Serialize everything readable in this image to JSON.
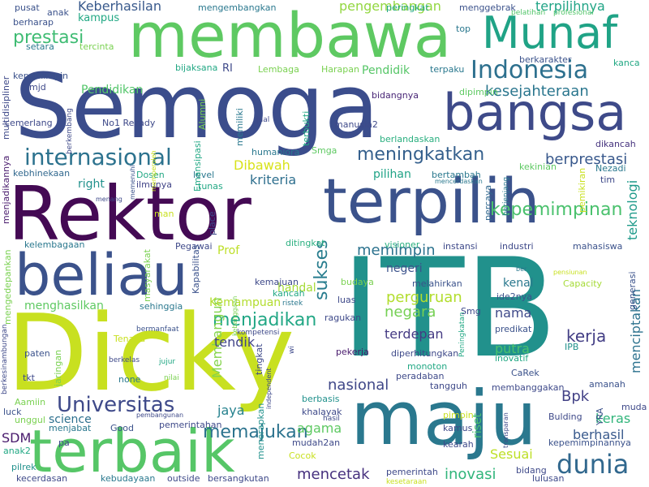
{
  "words": [
    {
      "t": "Semoga",
      "c": "#3b4d8c"
    },
    {
      "t": "ITB",
      "c": "#21918c"
    },
    {
      "t": "Dicky",
      "c": "#c8e020"
    },
    {
      "t": "Rektor",
      "c": "#440a54"
    },
    {
      "t": "membawa",
      "c": "#5ec962"
    },
    {
      "t": "terpilih",
      "c": "#3b528b"
    },
    {
      "t": "maju",
      "c": "#2a788e"
    },
    {
      "t": "terbaik",
      "c": "#56c667"
    },
    {
      "t": "beliau",
      "c": "#3b528b"
    },
    {
      "t": "bangsa",
      "c": "#3e4a89"
    },
    {
      "t": "Munaf",
      "c": "#20a386"
    },
    {
      "t": "Indonesia",
      "c": "#2d708e"
    },
    {
      "t": "internasional",
      "c": "#2c728e"
    },
    {
      "t": "dunia",
      "c": "#31688e"
    },
    {
      "t": "Universitas",
      "c": "#3e4989"
    },
    {
      "t": "kepemimpinan",
      "c": "#4ac16d"
    },
    {
      "t": "meningkatkan",
      "c": "#35608d"
    },
    {
      "t": "menjadikan",
      "c": "#22a785"
    },
    {
      "t": "memajukan",
      "c": "#2c738e"
    },
    {
      "t": "prestasi",
      "c": "#3fbc73"
    },
    {
      "t": "sukses",
      "c": "#287d8e"
    },
    {
      "t": "kesejahteraan",
      "c": "#2a768e"
    },
    {
      "t": "Keberhasilan",
      "c": "#38598c"
    },
    {
      "t": "pengembangan",
      "c": "#93d741"
    },
    {
      "t": "terpilihnya",
      "c": "#20a486"
    },
    {
      "t": "berprestasi",
      "c": "#38588c"
    },
    {
      "t": "perguruan",
      "c": "#b2dd2d"
    },
    {
      "t": "inovasi",
      "c": "#31b57b"
    },
    {
      "t": "nasional",
      "c": "#3f4788"
    },
    {
      "t": "mencetak",
      "c": "#46307e"
    },
    {
      "t": "Dibawah",
      "c": "#d8e219"
    },
    {
      "t": "kriteria",
      "c": "#2e6f8e"
    },
    {
      "t": "memimpin",
      "c": "#2c728e"
    },
    {
      "t": "negara",
      "c": "#75d054"
    },
    {
      "t": "terdepan",
      "c": "#443a83"
    },
    {
      "t": "kerja",
      "c": "#433e85"
    },
    {
      "t": "keras",
      "c": "#31b57b"
    },
    {
      "t": "berhasil",
      "c": "#38598c"
    },
    {
      "t": "menciptakan",
      "c": "#2c728e"
    },
    {
      "t": "teknologi",
      "c": "#1f9a8a"
    },
    {
      "t": "Bpk",
      "c": "#424186"
    },
    {
      "t": "science",
      "c": "#2d708e"
    },
    {
      "t": "jaya",
      "c": "#26828e"
    },
    {
      "t": "agama",
      "c": "#5ec962"
    },
    {
      "t": "riset",
      "c": "#48c16e"
    },
    {
      "t": "Sesuai",
      "c": "#bddf26"
    },
    {
      "t": "SDM",
      "c": "#481a6c"
    },
    {
      "t": "Membangun",
      "c": "#84d44b"
    },
    {
      "t": "Kemampuan",
      "c": "#b2dd2d"
    },
    {
      "t": "menghasilkan",
      "c": "#5ec962"
    },
    {
      "t": "handal",
      "c": "#a5db36"
    },
    {
      "t": "tendik",
      "c": "#414487"
    },
    {
      "t": "nama",
      "c": "#3e4989"
    },
    {
      "t": "putra",
      "c": "#48c16e"
    },
    {
      "t": "kenal",
      "c": "#2a788e"
    },
    {
      "t": "negeri",
      "c": "#3b528b"
    },
    {
      "t": "pilihan",
      "c": "#20a386"
    },
    {
      "t": "right",
      "c": "#21918c"
    },
    {
      "t": "Prof",
      "c": "#bddf26"
    },
    {
      "t": "Pendidikan",
      "c": "#52c569"
    },
    {
      "t": "Pendidik",
      "c": "#56c667"
    },
    {
      "t": "kampus",
      "c": "#22a884"
    },
    {
      "t": "berharap",
      "c": "#3b528b"
    },
    {
      "t": "cemerlang",
      "c": "#3e4989"
    },
    {
      "t": "kepemimpin",
      "c": "#3b528b"
    },
    {
      "t": "bidangnya",
      "c": "#482576"
    },
    {
      "t": "berlandaskan",
      "c": "#29af7f"
    },
    {
      "t": "dikancah",
      "c": "#46337e"
    },
    {
      "t": "mahasiswa",
      "c": "#3b528b"
    },
    {
      "t": "industri",
      "c": "#3e4989"
    },
    {
      "t": "instansi",
      "c": "#3e4989"
    },
    {
      "t": "Pegawai",
      "c": "#3e4989"
    },
    {
      "t": "ditingkat",
      "c": "#29af7f"
    },
    {
      "t": "visioner",
      "c": "#29af7f"
    },
    {
      "t": "kelembagaan",
      "c": "#2a788e"
    },
    {
      "t": "menjadikannya",
      "c": "#481a6c"
    },
    {
      "t": "kebhinekaan",
      "c": "#31688e"
    },
    {
      "t": "ilmunya",
      "c": "#414487"
    },
    {
      "t": "Dosen",
      "c": "#22a884"
    },
    {
      "t": "level",
      "c": "#2a788e"
    },
    {
      "t": "tunas",
      "c": "#22a884"
    },
    {
      "t": "man",
      "c": "#c8e020"
    },
    {
      "t": "place",
      "c": "#3e4989"
    },
    {
      "t": "humaniora",
      "c": "#2a788e"
    },
    {
      "t": "Smga",
      "c": "#5ec962"
    },
    {
      "t": "manusia2",
      "c": "#3e4989"
    },
    {
      "t": "No1 Rezady",
      "c": "#3e4989"
    },
    {
      "t": "RI",
      "c": "#3e4989"
    },
    {
      "t": "bijaksana",
      "c": "#22a884"
    },
    {
      "t": "Lembaga",
      "c": "#7ad151"
    },
    {
      "t": "Harapan",
      "c": "#7ad151"
    },
    {
      "t": "terpaku",
      "c": "#2a788e"
    },
    {
      "t": "dipimpin",
      "c": "#5ec962"
    },
    {
      "t": "berkarakter",
      "c": "#3b528b"
    },
    {
      "t": "kanca",
      "c": "#22a884"
    },
    {
      "t": "top",
      "c": "#2a788e"
    },
    {
      "t": "peringkat",
      "c": "#22a884"
    },
    {
      "t": "menggebrak",
      "c": "#3b528b"
    },
    {
      "t": "mengembangkan",
      "c": "#2a788e"
    },
    {
      "t": "pusat",
      "c": "#3b528b"
    },
    {
      "t": "anak",
      "c": "#3b528b"
    },
    {
      "t": "setara",
      "c": "#2a788e"
    },
    {
      "t": "tercinta",
      "c": "#7ad151"
    },
    {
      "t": "mjd",
      "c": "#3e4989"
    },
    {
      "t": "pelatihan",
      "c": "#52c569"
    },
    {
      "t": "profesional",
      "c": "#52c569"
    },
    {
      "t": "jual",
      "c": "#3e4989"
    },
    {
      "t": "Alumni",
      "c": "#7ad151"
    },
    {
      "t": "Emansipasi",
      "c": "#22a884"
    },
    {
      "t": "memiliki",
      "c": "#2a788e"
    },
    {
      "t": "terbukti",
      "c": "#22a884"
    },
    {
      "t": "bertambah",
      "c": "#2a788e"
    },
    {
      "t": "kekinian",
      "c": "#5ec962"
    },
    {
      "t": "Nezadi",
      "c": "#2a788e"
    },
    {
      "t": "tim",
      "c": "#3e4989"
    },
    {
      "t": "mencerdaskan",
      "c": "#2a788e"
    },
    {
      "t": "percaya",
      "c": "#31688e"
    },
    {
      "t": "pemikiran",
      "c": "#c8e020"
    },
    {
      "t": "berjenjang",
      "c": "#2a788e"
    },
    {
      "t": "memperoleh",
      "c": "#c8e020"
    },
    {
      "t": "menang",
      "c": "#3e4989"
    },
    {
      "t": "memenuhi",
      "c": "#3b528b"
    },
    {
      "t": "mengedepankan",
      "c": "#7ad151"
    },
    {
      "t": "masyarakat",
      "c": "#7ad151"
    },
    {
      "t": "Kapabilitas",
      "c": "#3b528b"
    },
    {
      "t": "sehinggia",
      "c": "#2a788e"
    },
    {
      "t": "kemajuan",
      "c": "#3e4989"
    },
    {
      "t": "kancah",
      "c": "#22a884"
    },
    {
      "t": "ristek",
      "c": "#2a788e"
    },
    {
      "t": "budaya",
      "c": "#7ad151"
    },
    {
      "t": "melahirkan",
      "c": "#3b528b"
    },
    {
      "t": "luas",
      "c": "#3e4989"
    },
    {
      "t": "ide2nya",
      "c": "#3b528b"
    },
    {
      "t": "Smg",
      "c": "#3e4989"
    },
    {
      "t": "ber",
      "c": "#2a788e"
    },
    {
      "t": "pensiunan",
      "c": "#c8e020"
    },
    {
      "t": "Capacity",
      "c": "#a5db36"
    },
    {
      "t": "generasi",
      "c": "#3b528b"
    },
    {
      "t": "predikat",
      "c": "#3b528b"
    },
    {
      "t": "inovatif",
      "c": "#22a884"
    },
    {
      "t": "IPB",
      "c": "#21918c"
    },
    {
      "t": "Tenaga",
      "c": "#c8e020"
    },
    {
      "t": "bermanfaat",
      "c": "#3b528b"
    },
    {
      "t": "kompetensi",
      "c": "#3e4989"
    },
    {
      "t": "kebanggaan",
      "c": "#7ad151"
    },
    {
      "t": "berkesinambungan",
      "c": "#3e4989"
    },
    {
      "t": "jaringan",
      "c": "#7ad151"
    },
    {
      "t": "paten",
      "c": "#3b528b"
    },
    {
      "t": "tkt",
      "c": "#3e4989"
    },
    {
      "t": "berkelas",
      "c": "#3e4989"
    },
    {
      "t": "jujur",
      "c": "#22a884"
    },
    {
      "t": "none",
      "c": "#2a788e"
    },
    {
      "t": "nilai",
      "c": "#7ad151"
    },
    {
      "t": "tingkat",
      "c": "#3e4989"
    },
    {
      "t": "wi",
      "c": "#3e4989"
    },
    {
      "t": "pekerja",
      "c": "#481a6c"
    },
    {
      "t": "diperhitungkan",
      "c": "#3e4989"
    },
    {
      "t": "monoton",
      "c": "#22a884"
    },
    {
      "t": "peradaban",
      "c": "#3e4989"
    },
    {
      "t": "CaRek",
      "c": "#3b528b"
    },
    {
      "t": "tangguh",
      "c": "#3e4989"
    },
    {
      "t": "membanggakan",
      "c": "#3e4989"
    },
    {
      "t": "amanah",
      "c": "#3b528b"
    },
    {
      "t": "muda",
      "c": "#3e4989"
    },
    {
      "t": "YRA",
      "c": "#3b528b"
    },
    {
      "t": "Peningkatan",
      "c": "#22a884"
    },
    {
      "t": "Aamiin",
      "c": "#7ad151"
    },
    {
      "t": "luck",
      "c": "#3b528b"
    },
    {
      "t": "unggul",
      "c": "#7ad151"
    },
    {
      "t": "menjabat",
      "c": "#2a788e"
    },
    {
      "t": "anak2",
      "c": "#22a884"
    },
    {
      "t": "Good",
      "c": "#3b528b"
    },
    {
      "t": "pembangunan",
      "c": "#3e4989"
    },
    {
      "t": "pemerintahan",
      "c": "#3e4989"
    },
    {
      "t": "berbasis",
      "c": "#21918c"
    },
    {
      "t": "khalayak",
      "c": "#3e4989"
    },
    {
      "t": "independent",
      "c": "#3e4989"
    },
    {
      "t": "hasil",
      "c": "#3e4989"
    },
    {
      "t": "pimpin",
      "c": "#c8e020"
    },
    {
      "t": "Bulding",
      "c": "#3e4989"
    },
    {
      "t": "kamus",
      "c": "#3e4989"
    },
    {
      "t": "transparan",
      "c": "#3e4989"
    },
    {
      "t": "kepemimpinannya",
      "c": "#3b528b"
    },
    {
      "t": "menerapkan",
      "c": "#21918c"
    },
    {
      "t": "mudah2an",
      "c": "#3e4989"
    },
    {
      "t": "kearah",
      "c": "#3e4989"
    },
    {
      "t": "pa",
      "c": "#3e4989"
    },
    {
      "t": "Cocok",
      "c": "#c8e020"
    },
    {
      "t": "pilrek",
      "c": "#21918c"
    },
    {
      "t": "kecerdasan",
      "c": "#3e4989"
    },
    {
      "t": "kebudayaan",
      "c": "#2a788e"
    },
    {
      "t": "outside",
      "c": "#3e4989"
    },
    {
      "t": "bersangkutan",
      "c": "#3e4989"
    },
    {
      "t": "pemerintah",
      "c": "#3e4989"
    },
    {
      "t": "kesetaraan",
      "c": "#c8e020"
    },
    {
      "t": "bidang",
      "c": "#3e4989"
    },
    {
      "t": "lulusan",
      "c": "#3e4989"
    },
    {
      "t": "multidisipliner",
      "c": "#3e4989"
    },
    {
      "t": "berkembang",
      "c": "#3e4989"
    },
    {
      "t": "ragukan",
      "c": "#3e4989"
    }
  ]
}
